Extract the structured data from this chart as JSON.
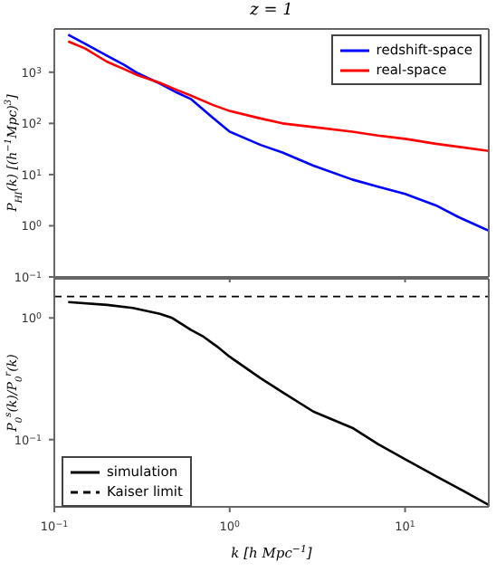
{
  "chart_data": [
    {
      "type": "line",
      "title": "z = 1",
      "ylabel": "P$_{HI}$(k) [(h$^{−1}$Mpc)$^{3}$]",
      "log": "xy",
      "xlim": [
        0.1,
        30
      ],
      "xticks": [
        {
          "value": 0.1,
          "label": null
        },
        {
          "value": 1,
          "label": null
        },
        {
          "value": 10,
          "label": null
        }
      ],
      "ylim": [
        0.1,
        7000
      ],
      "yticks": [
        {
          "value": 0.1,
          "label": "10$^{−1}$"
        },
        {
          "value": 1,
          "label": "10$^{0}$"
        },
        {
          "value": 10,
          "label": "10$^{1}$"
        },
        {
          "value": 100,
          "label": "10$^{2}$"
        },
        {
          "value": 1000,
          "label": "10$^{3}$"
        }
      ],
      "tick_labels": "y",
      "legend": "top right",
      "grid": false,
      "series": [
        {
          "name": "redshift-space",
          "color": "#0000ff",
          "x": [
            0.12,
            0.15,
            0.2,
            0.25,
            0.3,
            0.4,
            0.5,
            0.6,
            0.8,
            1,
            1.5,
            2,
            3,
            5,
            7,
            10,
            15,
            20,
            30
          ],
          "values": [
            5400,
            3600,
            2100,
            1400,
            950,
            600,
            400,
            300,
            130,
            69,
            38,
            27,
            15,
            8,
            5.8,
            4.2,
            2.5,
            1.5,
            0.8
          ]
        },
        {
          "name": "real-space",
          "color": "#ff0000",
          "x": [
            0.12,
            0.15,
            0.2,
            0.25,
            0.3,
            0.4,
            0.5,
            0.6,
            0.8,
            1,
            1.5,
            2,
            3,
            5,
            7,
            10,
            15,
            20,
            30
          ],
          "values": [
            4000,
            2900,
            1600,
            1150,
            870,
            620,
            450,
            350,
            230,
            175,
            125,
            100,
            85,
            69,
            58,
            50,
            40,
            35,
            29
          ]
        }
      ]
    },
    {
      "type": "line",
      "xlabel": "k [h Mpc$^{−1}$]",
      "ylabel": "P$_{0}$$^{s}$(k)/P$_{0}$$^{r}$(k)",
      "log": "xy",
      "xlim": [
        0.1,
        30
      ],
      "xticks": [
        {
          "value": 0.1,
          "label": "10$^{−1}$"
        },
        {
          "value": 1,
          "label": "10$^{0}$"
        },
        {
          "value": 10,
          "label": "10$^{1}$"
        }
      ],
      "ylim": [
        0.028,
        2.1
      ],
      "yticks": [
        {
          "value": 0.1,
          "label": "10$^{−1}$"
        },
        {
          "value": 1,
          "label": "10$^{0}$"
        }
      ],
      "legend": "bottom left",
      "grid": false,
      "series": [
        {
          "name": "simulation",
          "color": "#000000",
          "x": [
            0.12,
            0.2,
            0.28,
            0.4,
            0.47,
            0.6,
            0.7,
            0.85,
            1,
            1.5,
            2,
            3,
            5,
            7,
            10,
            15,
            20,
            30
          ],
          "values": [
            1.35,
            1.28,
            1.21,
            1.08,
            1.0,
            0.8,
            0.71,
            0.58,
            0.48,
            0.32,
            0.245,
            0.17,
            0.125,
            0.092,
            0.069,
            0.05,
            0.04,
            0.029
          ]
        }
      ],
      "ref_lines": [
        {
          "axis": "y",
          "value": 1.5,
          "label": "Kaiser limit",
          "color": "#000000",
          "line_style": "dashed"
        }
      ]
    }
  ]
}
